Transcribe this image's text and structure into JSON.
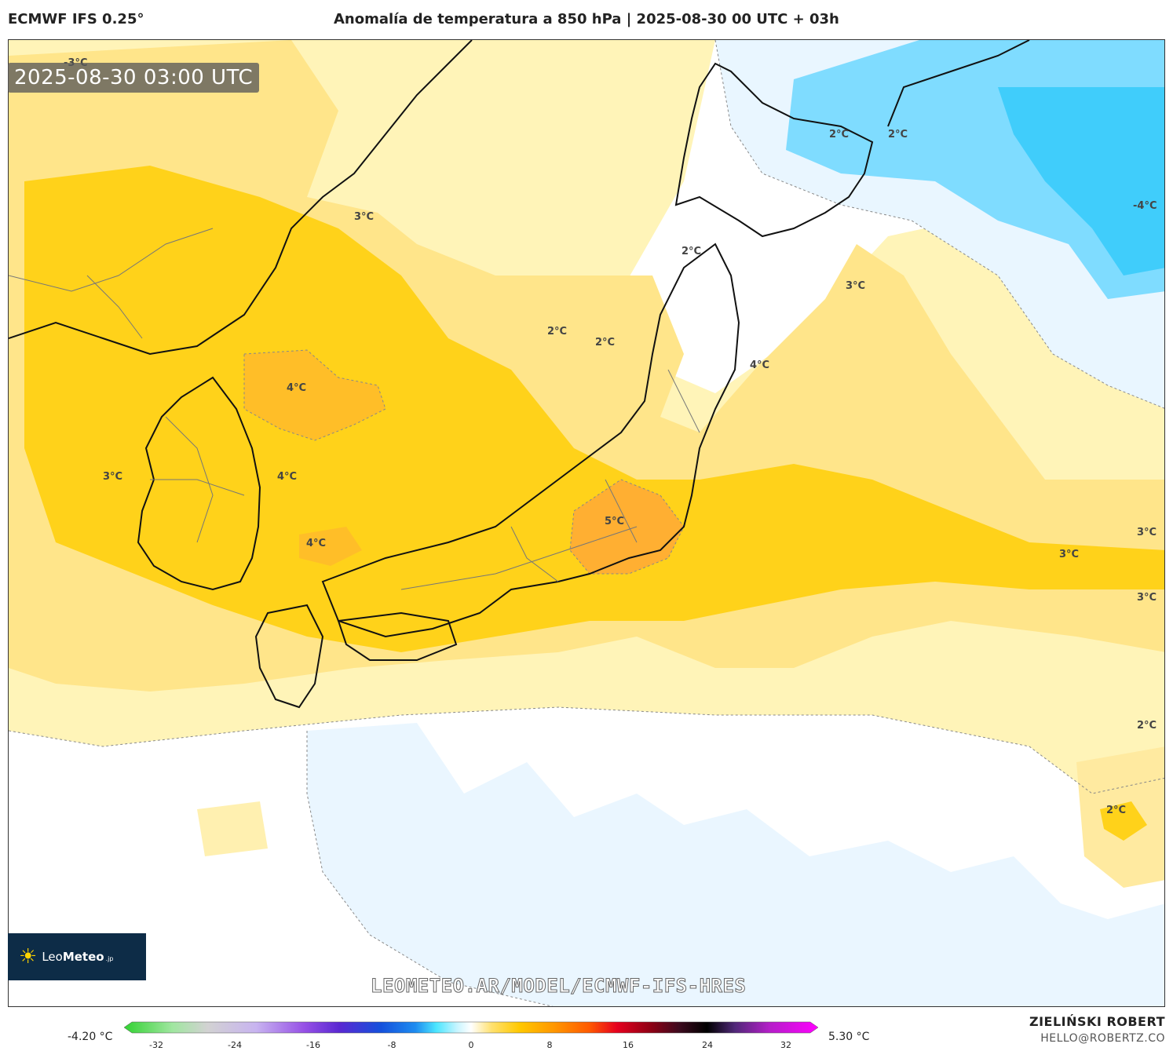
{
  "header": {
    "model": "ECMWF IFS 0.25°",
    "title": "Anomalía de temperatura a 850 hPa | 2025-08-30 00 UTC + 03h"
  },
  "timestamp": "2025-08-30 03:00 UTC",
  "contour_labels": [
    {
      "text": "-3°C"
    },
    {
      "text": "3°C"
    },
    {
      "text": "2°C"
    },
    {
      "text": "2°C"
    },
    {
      "text": "-4°C"
    },
    {
      "text": "2°C"
    },
    {
      "text": "3°C"
    },
    {
      "text": "2°C"
    },
    {
      "text": "2°C"
    },
    {
      "text": "4°C"
    },
    {
      "text": "4°C"
    },
    {
      "text": "3°C"
    },
    {
      "text": "4°C"
    },
    {
      "text": "4°C"
    },
    {
      "text": "5°C"
    },
    {
      "text": "3°C"
    },
    {
      "text": "3°C"
    },
    {
      "text": "3°C"
    },
    {
      "text": "2°C"
    },
    {
      "text": "2°C"
    }
  ],
  "logo": {
    "brand_light": "Leo",
    "brand_bold": "Meteo",
    "tld": ".jp",
    "icon": "sun-icon"
  },
  "watermark": "LEOMETEO.AR/MODEL/ECMWF-IFS-HRES",
  "colorbar": {
    "min_label": "-4.20 °C",
    "max_label": "5.30 °C",
    "ticks": [
      "-32",
      "-24",
      "-16",
      "-8",
      "0",
      "8",
      "16",
      "24",
      "32"
    ],
    "colors": [
      "#32d232",
      "#a0e6a0",
      "#d2d2d2",
      "#c8b4f0",
      "#9650e6",
      "#5a28d2",
      "#1450dc",
      "#1e8cf0",
      "#4ce6ff",
      "#c8f5ff",
      "#ffffff",
      "#ffe16e",
      "#ffc800",
      "#ff9600",
      "#ff5a00",
      "#e6001e",
      "#8c0014",
      "#3c0a1e",
      "#000000",
      "#502878",
      "#b41ec8",
      "#ff00ff"
    ]
  },
  "credit": {
    "author": "ZIELIŃSKI ROBERT",
    "email": "HELLO@ROBERTZ.CO"
  }
}
